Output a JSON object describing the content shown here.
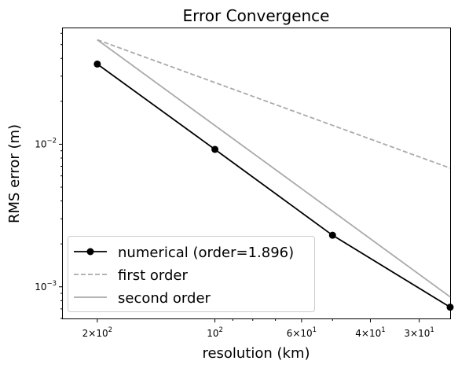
{
  "chart_data": {
    "type": "line",
    "title": "Error Convergence",
    "xlabel": "resolution (km)",
    "ylabel": "RMS error (m)",
    "x_scale": "log",
    "y_scale": "log",
    "x_axis_inverted": true,
    "xlim": [
      245,
      25
    ],
    "ylim": [
      0.0006,
      0.065
    ],
    "grid": false,
    "legend_position": "lower-left",
    "x_ticks": [
      {
        "value": 200,
        "base": "2×10",
        "exp": "2"
      },
      {
        "value": 100,
        "base": "10",
        "exp": "2"
      },
      {
        "value": 60,
        "base": "6×10",
        "exp": "1"
      },
      {
        "value": 40,
        "base": "4×10",
        "exp": "1"
      },
      {
        "value": 30,
        "base": "3×10",
        "exp": "1"
      }
    ],
    "y_ticks": [
      {
        "value": 0.01,
        "base": "10",
        "exp": "−2"
      },
      {
        "value": 0.001,
        "base": "10",
        "exp": "−3"
      }
    ],
    "series": [
      {
        "name": "numerical (order=1.896)",
        "color": "#000000",
        "style": "solid",
        "marker": "circle",
        "x": [
          200,
          100,
          50,
          25
        ],
        "y": [
          0.0365,
          0.0092,
          0.0023,
          0.00072
        ]
      },
      {
        "name": "first order",
        "color": "#aaaaaa",
        "style": "dashed",
        "marker": "none",
        "x": [
          200,
          25
        ],
        "y": [
          0.054,
          0.0068
        ]
      },
      {
        "name": "second order",
        "color": "#aaaaaa",
        "style": "solid",
        "marker": "none",
        "x": [
          200,
          25
        ],
        "y": [
          0.054,
          0.00085
        ]
      }
    ]
  }
}
